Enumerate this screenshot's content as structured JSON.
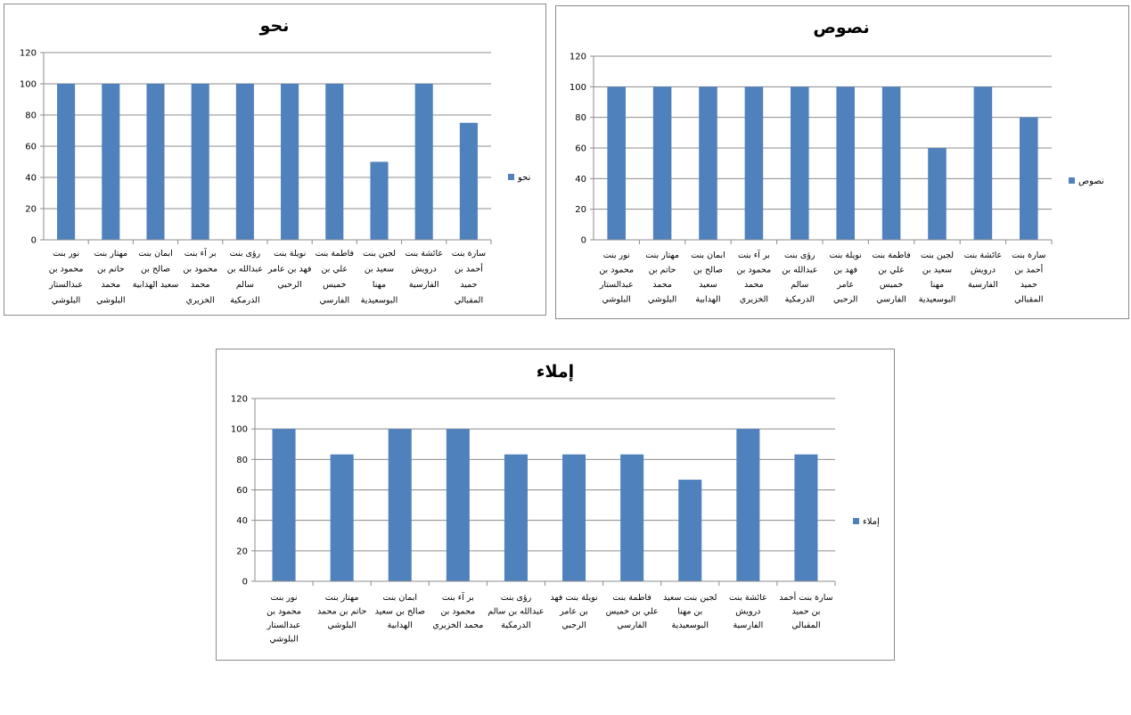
{
  "chart_data": [
    {
      "type": "bar",
      "title": "نحو",
      "ylim": [
        0,
        120
      ],
      "yticks": [
        0,
        20,
        40,
        60,
        80,
        100,
        120
      ],
      "grid": true,
      "legend_position": "right",
      "color": "#4f81bd",
      "series": [
        {
          "name": "نحو",
          "values": [
            100,
            100,
            100,
            100,
            100,
            100,
            100,
            50,
            100,
            75
          ]
        }
      ],
      "categories": [
        [
          "نور بنت",
          "محمود بن",
          "عبدالستار",
          "البلوشي"
        ],
        [
          "مهتار بنت",
          "حاتم بن",
          "محمد",
          "البلوشي"
        ],
        [
          "ابمان بنت",
          "صالح بن",
          "سعيد الهدابية"
        ],
        [
          "بر آء بنت",
          "محمود بن",
          "محمد",
          "الخزيري"
        ],
        [
          "رؤى بنت",
          "عبدالله بن",
          "سالم",
          "الدرمكية"
        ],
        [
          "نويلة بنت",
          "فهد بن عامر",
          "الرحبي"
        ],
        [
          "فاطمة بنت",
          "علي بن",
          "خميس",
          "الفارسي"
        ],
        [
          "لجين بنت",
          "سعيد بن",
          "مهنا",
          "البوسعيدية"
        ],
        [
          "عائشة بنت",
          "درويش",
          "الفارسية"
        ],
        [
          "سارة بنت",
          "أحمد بن",
          "حميد",
          "المقبالي"
        ]
      ]
    },
    {
      "type": "bar",
      "title": "نصوص",
      "ylim": [
        0,
        120
      ],
      "yticks": [
        0,
        20,
        40,
        60,
        80,
        100,
        120
      ],
      "grid": true,
      "legend_position": "right",
      "color": "#4f81bd",
      "series": [
        {
          "name": "نصوص",
          "values": [
            100,
            100,
            100,
            100,
            100,
            100,
            100,
            60,
            100,
            80
          ]
        }
      ],
      "categories": [
        [
          "نور بنت",
          "محمود بن",
          "عبدالستار",
          "البلوشي"
        ],
        [
          "مهتار بنت",
          "حاتم بن",
          "محمد",
          "البلوشي"
        ],
        [
          "ابمان بنت",
          "صالح بن",
          "سعيد",
          "الهدابية"
        ],
        [
          "بر آء بنت",
          "محمود بن",
          "محمد",
          "الخزيري"
        ],
        [
          "رؤى بنت",
          "عبدالله بن",
          "سالم",
          "الدرمكية"
        ],
        [
          "نويلة بنت",
          "فهد بن",
          "عامر",
          "الرحبي"
        ],
        [
          "فاطمة بنت",
          "علي بن",
          "خميس",
          "الفارسي"
        ],
        [
          "لجين بنت",
          "سعيد بن",
          "مهنا",
          "البوسعيدية"
        ],
        [
          "عائشة بنت",
          "درويش",
          "الفارسية"
        ],
        [
          "سارة بنت",
          "أحمد بن",
          "حميد",
          "المقبالي"
        ]
      ]
    },
    {
      "type": "bar",
      "title": "إملاء",
      "ylim": [
        0,
        120
      ],
      "yticks": [
        0,
        20,
        40,
        60,
        80,
        100,
        120
      ],
      "grid": true,
      "legend_position": "right",
      "color": "#4f81bd",
      "series": [
        {
          "name": "إملاء",
          "values": [
            100,
            83.3,
            100,
            100,
            83.3,
            83.3,
            83.3,
            66.7,
            100,
            83.3
          ]
        }
      ],
      "categories": [
        [
          "نور بنت",
          "محمود بن",
          "عبدالستار",
          "البلوشي"
        ],
        [
          "مهتار بنت",
          "حاتم بن محمد",
          "البلوشي"
        ],
        [
          "ابمان بنت",
          "صالح بن سعيد",
          "الهدابية"
        ],
        [
          "بر آء بنت",
          "محمود بن",
          "محمد الخزيري"
        ],
        [
          "رؤى بنت",
          "عبدالله بن سالم",
          "الدرمكية"
        ],
        [
          "نويلة بنت فهد",
          "بن عامر",
          "الرحبي"
        ],
        [
          "فاطمة بنت",
          "علي بن خميس",
          "الفارسي"
        ],
        [
          "لجين بنت سعيد",
          "بن مهنا",
          "البوسعيدية"
        ],
        [
          "عائشة بنت",
          "درويش",
          "الفارسية"
        ],
        [
          "سارة بنت أحمد",
          "بن حميد",
          "المقبالي"
        ]
      ]
    }
  ]
}
